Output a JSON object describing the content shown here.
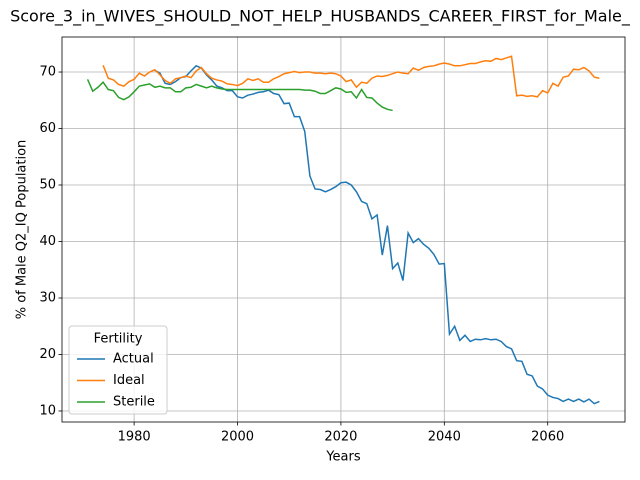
{
  "chart_data": {
    "type": "line",
    "title": "Score_3_in_WIVES_SHOULD_NOT_HELP_HUSBANDS_CAREER_FIRST_for_Male_",
    "xlabel": "Years",
    "ylabel": "% of Male Q2_IQ Population",
    "x": [
      1971,
      1972,
      1973,
      1974,
      1975,
      1976,
      1977,
      1978,
      1979,
      1980,
      1981,
      1982,
      1983,
      1984,
      1985,
      1986,
      1987,
      1988,
      1989,
      1990,
      1991,
      1992,
      1993,
      1994,
      1995,
      1996,
      1997,
      1998,
      1999,
      2000,
      2001,
      2002,
      2003,
      2004,
      2005,
      2006,
      2007,
      2008,
      2009,
      2010,
      2011,
      2012,
      2013,
      2014,
      2015,
      2016,
      2017,
      2018,
      2019,
      2020,
      2021,
      2022,
      2023,
      2024,
      2025,
      2026,
      2027,
      2028,
      2029,
      2030,
      2031,
      2032,
      2033,
      2034,
      2035,
      2036,
      2037,
      2038,
      2039,
      2040,
      2041,
      2042,
      2043,
      2044,
      2045,
      2046,
      2047,
      2048,
      2049,
      2050,
      2051,
      2052,
      2053,
      2054,
      2055,
      2056,
      2057,
      2058,
      2059,
      2060,
      2061,
      2062,
      2063,
      2064,
      2065,
      2066,
      2067,
      2068,
      2069,
      2070
    ],
    "series": [
      {
        "name": "Actual",
        "color": "#1f77b4",
        "values": [
          null,
          null,
          null,
          null,
          null,
          null,
          null,
          null,
          null,
          null,
          null,
          null,
          null,
          70.3,
          69.8,
          68.0,
          67.8,
          68.3,
          69.0,
          69.2,
          70.2,
          71.1,
          70.7,
          69.5,
          68.6,
          67.5,
          67.2,
          66.7,
          66.7,
          65.6,
          65.4,
          65.9,
          66.1,
          66.4,
          66.5,
          66.8,
          66.2,
          66.0,
          64.4,
          64.5,
          62.1,
          62.1,
          59.5,
          51.6,
          49.3,
          49.2,
          48.8,
          49.2,
          49.7,
          50.4,
          50.5,
          50.0,
          48.8,
          47.1,
          46.7,
          44.0,
          44.7,
          37.6,
          42.8,
          35.2,
          36.2,
          33.1,
          41.5,
          39.8,
          40.5,
          39.5,
          38.8,
          37.7,
          36.0,
          36.1,
          23.6,
          25.0,
          22.5,
          23.4,
          22.3,
          22.7,
          22.6,
          22.8,
          22.6,
          22.7,
          22.3,
          21.4,
          21.0,
          18.9,
          18.8,
          16.5,
          16.2,
          14.4,
          13.9,
          12.8,
          12.4,
          12.2,
          11.7,
          12.1,
          11.7,
          12.1,
          11.6,
          12.1,
          11.3,
          11.7
        ]
      },
      {
        "name": "Ideal",
        "color": "#ff7f0e",
        "values": [
          null,
          null,
          null,
          71.2,
          68.9,
          68.6,
          67.8,
          67.5,
          68.3,
          68.7,
          69.8,
          69.3,
          70.0,
          70.4,
          69.5,
          68.5,
          68.0,
          68.8,
          69.0,
          69.3,
          69.0,
          70.2,
          70.8,
          69.7,
          68.9,
          68.6,
          68.4,
          67.9,
          67.8,
          67.6,
          68.0,
          68.8,
          68.5,
          68.8,
          68.2,
          68.2,
          68.8,
          69.2,
          69.7,
          69.9,
          70.1,
          69.9,
          70.0,
          70.0,
          69.8,
          69.8,
          69.7,
          69.8,
          69.7,
          69.3,
          68.3,
          68.6,
          67.3,
          68.2,
          68.0,
          68.9,
          69.3,
          69.2,
          69.4,
          69.7,
          70.0,
          69.8,
          69.7,
          70.7,
          70.3,
          70.8,
          71.0,
          71.1,
          71.4,
          71.6,
          71.4,
          71.1,
          71.1,
          71.3,
          71.5,
          71.5,
          71.8,
          72.0,
          71.9,
          72.4,
          72.2,
          72.5,
          72.8,
          65.8,
          65.9,
          65.7,
          65.8,
          65.6,
          66.7,
          66.3,
          68.0,
          67.5,
          69.1,
          69.3,
          70.5,
          70.4,
          70.8,
          70.2,
          69.1,
          68.9
        ]
      },
      {
        "name": "Sterile",
        "color": "#2ca02c",
        "values": [
          68.7,
          66.6,
          67.3,
          68.2,
          66.9,
          66.7,
          65.5,
          65.1,
          65.6,
          66.5,
          67.5,
          67.7,
          67.9,
          67.3,
          67.5,
          67.2,
          67.2,
          66.5,
          66.5,
          67.2,
          67.3,
          67.8,
          67.5,
          67.2,
          67.5,
          67.2,
          67.0,
          66.9,
          66.9,
          66.9,
          66.9,
          66.9,
          66.9,
          66.9,
          66.9,
          66.9,
          66.9,
          66.9,
          66.9,
          66.9,
          66.9,
          66.9,
          66.8,
          66.8,
          66.6,
          66.2,
          66.2,
          66.7,
          67.2,
          67.0,
          66.4,
          66.5,
          65.4,
          66.9,
          65.5,
          65.4,
          64.5,
          63.8,
          63.4,
          63.2,
          null,
          null,
          null,
          null,
          null,
          null,
          null,
          null,
          null,
          null,
          null,
          null,
          null,
          null,
          null,
          null,
          null,
          null,
          null,
          null,
          null,
          null,
          null,
          null,
          null,
          null,
          null,
          null,
          null,
          null,
          null,
          null,
          null,
          null,
          null,
          null,
          null,
          null,
          null,
          null
        ]
      }
    ],
    "xlim": [
      1966.05,
      2074.95
    ],
    "xticks": [
      1980,
      2000,
      2020,
      2040,
      2060
    ],
    "ylim": [
      8.05,
      76.2
    ],
    "yticks": [
      10,
      20,
      30,
      40,
      50,
      60,
      70
    ],
    "grid": true,
    "legend_title": "Fertility",
    "legend_loc": "lower left"
  }
}
